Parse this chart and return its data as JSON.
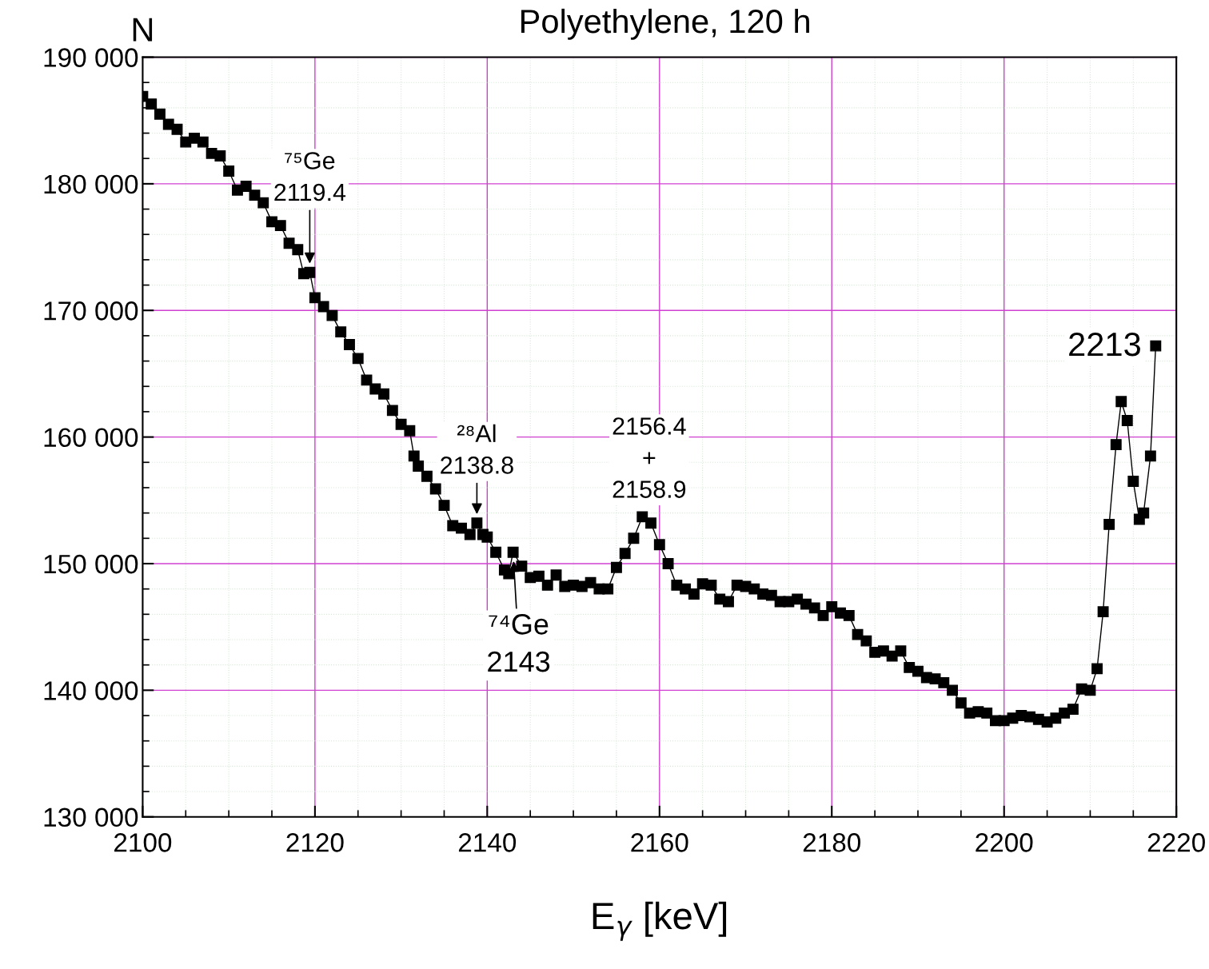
{
  "chart_data": {
    "type": "line",
    "title": "Polyethylene, 120 h",
    "xlabel": "E$_{γ}$ [keV]",
    "ylabel": "N",
    "xlim": [
      2100,
      2220
    ],
    "xticks": [
      2100,
      2120,
      2140,
      2160,
      2180,
      2200,
      2220
    ],
    "ylim": [
      130000,
      190000
    ],
    "yticks": [
      {
        "value": 130000,
        "label": "130 000"
      },
      {
        "value": 140000,
        "label": "140 000"
      },
      {
        "value": 150000,
        "label": "150 000"
      },
      {
        "value": 160000,
        "label": "160 000"
      },
      {
        "value": 170000,
        "label": "170 000"
      },
      {
        "value": 180000,
        "label": "180 000"
      },
      {
        "value": 190000,
        "label": "190 000"
      }
    ],
    "grid": true,
    "marker": "square",
    "line_style": "solid",
    "series": [
      {
        "color": "#000000",
        "x": [
          2100,
          2101,
          2102,
          2103,
          2104,
          2105,
          2106,
          2107,
          2108,
          2109,
          2110,
          2111,
          2112,
          2113,
          2114,
          2115,
          2116,
          2117,
          2118,
          2118.7,
          2119.4,
          2120,
          2121,
          2122,
          2123,
          2124,
          2125,
          2126,
          2127,
          2128,
          2129,
          2130,
          2131,
          2131.5,
          2132,
          2133,
          2134,
          2135,
          2136,
          2137,
          2138,
          2138.8,
          2139.5,
          2140,
          2141,
          2142,
          2142.5,
          2143,
          2144,
          2145,
          2146,
          2147,
          2148,
          2149,
          2150,
          2151,
          2152,
          2153,
          2154,
          2155,
          2156,
          2157,
          2158,
          2159,
          2160,
          2161,
          2162,
          2163,
          2164,
          2165,
          2166,
          2167,
          2168,
          2169,
          2170,
          2171,
          2172,
          2173,
          2174,
          2175,
          2176,
          2177,
          2178,
          2179,
          2180,
          2181,
          2182,
          2183,
          2184,
          2185,
          2186,
          2187,
          2188,
          2189,
          2190,
          2191,
          2192,
          2193,
          2194,
          2195,
          2196,
          2197,
          2198,
          2199,
          2200,
          2201,
          2202,
          2203,
          2204,
          2205,
          2206,
          2207,
          2208,
          2209,
          2210,
          2210.8,
          2211.5,
          2212.2,
          2213,
          2213.6,
          2214.3,
          2215,
          2215.7,
          2216.2,
          2217,
          2217.6
        ],
        "values": [
          186900,
          186300,
          185500,
          184700,
          184300,
          183300,
          183600,
          183300,
          182400,
          182200,
          181000,
          179500,
          179800,
          179100,
          178500,
          177000,
          176700,
          175300,
          174800,
          172900,
          173000,
          171000,
          170300,
          169600,
          168300,
          167300,
          166200,
          164500,
          163800,
          163400,
          162100,
          161000,
          160500,
          158500,
          157700,
          156900,
          155900,
          154600,
          153000,
          152800,
          152300,
          153200,
          152300,
          152100,
          150900,
          149500,
          149200,
          150900,
          149800,
          148900,
          149000,
          148300,
          149100,
          148200,
          148300,
          148200,
          148500,
          148000,
          148000,
          149700,
          150800,
          152000,
          153700,
          153200,
          151500,
          150000,
          148300,
          148000,
          147600,
          148400,
          148300,
          147200,
          147000,
          148300,
          148200,
          148000,
          147600,
          147500,
          147000,
          147000,
          147200,
          146800,
          146500,
          145900,
          146600,
          146100,
          145900,
          144400,
          143900,
          143000,
          143100,
          142700,
          143100,
          141800,
          141500,
          141000,
          140900,
          140600,
          140000,
          139000,
          138200,
          138300,
          138200,
          137600,
          137600,
          137800,
          138000,
          137900,
          137700,
          137500,
          137800,
          138200,
          138500,
          140100,
          140000,
          141700,
          146200,
          153100,
          159400,
          162800,
          161300,
          156500,
          153500,
          154000,
          158500,
          167200
        ]
      }
    ],
    "annotations": [
      {
        "text": "⁷⁵Ge\n2119.4",
        "x": 2119.4,
        "y": 173000
      },
      {
        "text": "²⁸Al\n2138.8",
        "x": 2138.8,
        "y": 153200
      },
      {
        "text": "⁷⁴Ge\n2143",
        "x": 2143,
        "y": 150900
      },
      "2156.4\n+\n2158.9",
      {
        "text": "2213",
        "x": 2213.6,
        "y": 162800
      }
    ]
  }
}
